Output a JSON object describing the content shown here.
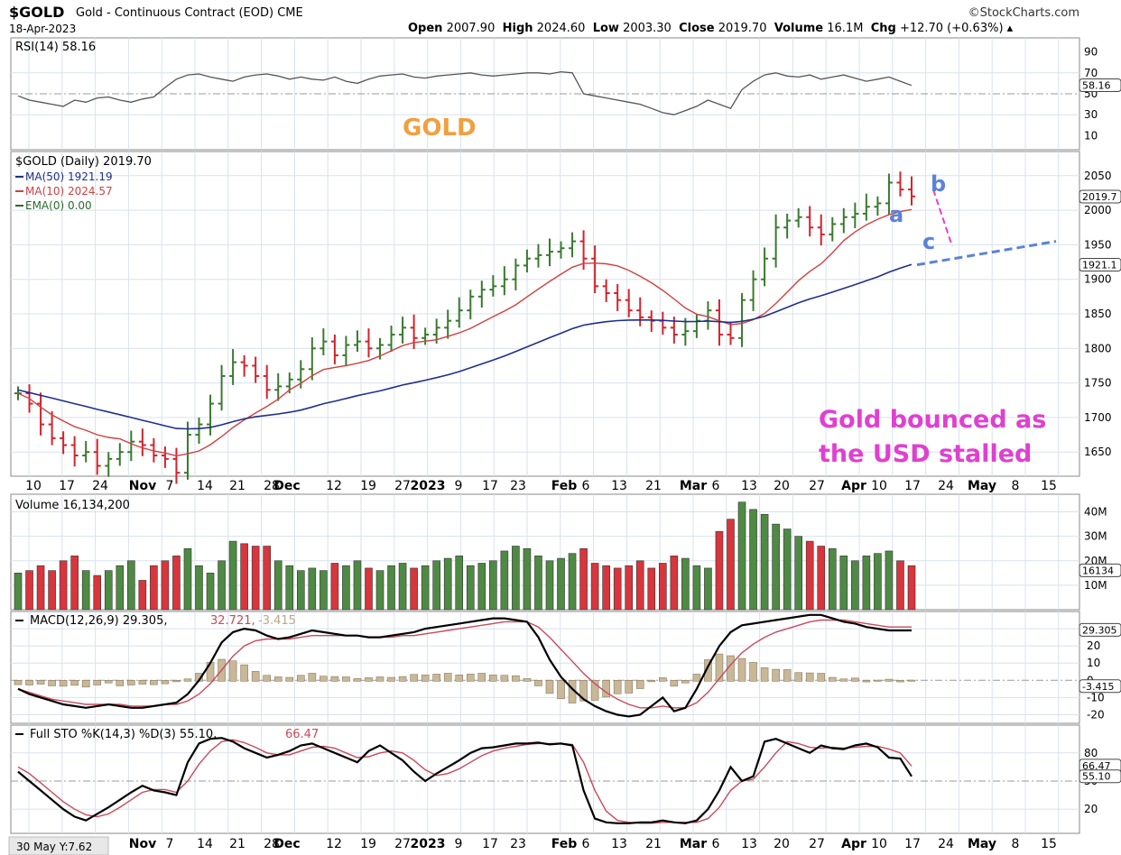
{
  "header": {
    "symbol": "$GOLD",
    "description": "Gold - Continuous Contract (EOD)",
    "exchange": "CME",
    "brand": "©StockCharts.com",
    "date": "18-Apr-2023",
    "open_label": "Open",
    "open": "2007.90",
    "high_label": "High",
    "high": "2024.60",
    "low_label": "Low",
    "low": "2003.30",
    "close_label": "Close",
    "close": "2019.70",
    "volume_label": "Volume",
    "volume": "16.1M",
    "chg_label": "Chg",
    "chg": "+12.70 (+0.63%)"
  },
  "colors": {
    "up": "#3a7a2e",
    "down": "#d4232b",
    "ma50": "#1f2e8f",
    "ma10": "#d04040",
    "rsi": "#555555",
    "annot_blue": "#5c82d8",
    "annot_pink": "#e040d0",
    "annot_orange": "#f0a040",
    "grid": "#d8e2ec"
  },
  "annotations": {
    "gold_label": "GOLD",
    "wave_a": "a",
    "wave_b": "b",
    "wave_c": "c",
    "note_line1": "Gold bounced as",
    "note_line2": "the USD stalled"
  },
  "x_axis_labels": [
    "10",
    "17",
    "24",
    "Nov",
    "7",
    "14",
    "21",
    "28",
    "Dec",
    "12",
    "19",
    "27",
    "2023",
    "9",
    "17",
    "23",
    "Feb",
    "6",
    "13",
    "21",
    "Mar",
    "6",
    "13",
    "20",
    "27",
    "Apr",
    "10",
    "17",
    "24",
    "May",
    "8",
    "15"
  ],
  "bottom_left_note": "30 May Y:7.62",
  "chart_data": [
    {
      "type": "line",
      "name": "RSI panel",
      "legend": "RSI(14) 58.16",
      "ticks": [
        90,
        70,
        50,
        30,
        10
      ],
      "ylim": [
        0,
        100
      ],
      "reference_lines": [
        70,
        50,
        30
      ],
      "last_value_tag": "58.16",
      "values": [
        48,
        44,
        42,
        40,
        38,
        44,
        42,
        46,
        47,
        44,
        42,
        45,
        47,
        56,
        64,
        68,
        69,
        66,
        64,
        62,
        66,
        68,
        69,
        67,
        64,
        66,
        64,
        63,
        66,
        62,
        60,
        64,
        67,
        68,
        69,
        66,
        65,
        67,
        68,
        69,
        70,
        68,
        67,
        68,
        69,
        70,
        70,
        69,
        71,
        70,
        50,
        48,
        46,
        44,
        42,
        40,
        36,
        32,
        30,
        34,
        38,
        44,
        40,
        36,
        54,
        62,
        68,
        70,
        67,
        66,
        68,
        64,
        66,
        68,
        65,
        62,
        64,
        66,
        62,
        58
      ]
    },
    {
      "type": "ohlc",
      "name": "Price panel",
      "legend": {
        "main": "$GOLD (Daily) 2019.70",
        "ma50": "MA(50) 1921.19",
        "ma10": "MA(10) 2024.57",
        "ema": "EMA(0) 0.00"
      },
      "ticks": [
        2050,
        2000,
        1950,
        1900,
        1850,
        1800,
        1750,
        1700,
        1650
      ],
      "ylim": [
        1615,
        2085
      ],
      "last_close_tag": "2019.7",
      "ma50_tag": "1921.1",
      "closes": [
        1735,
        1720,
        1690,
        1670,
        1660,
        1645,
        1650,
        1630,
        1640,
        1650,
        1665,
        1660,
        1645,
        1640,
        1620,
        1675,
        1690,
        1720,
        1760,
        1780,
        1775,
        1760,
        1740,
        1745,
        1755,
        1770,
        1800,
        1810,
        1790,
        1805,
        1810,
        1800,
        1805,
        1820,
        1830,
        1815,
        1820,
        1830,
        1840,
        1855,
        1875,
        1885,
        1890,
        1900,
        1920,
        1930,
        1935,
        1940,
        1945,
        1955,
        1930,
        1890,
        1880,
        1870,
        1855,
        1845,
        1840,
        1830,
        1820,
        1825,
        1840,
        1855,
        1820,
        1815,
        1870,
        1900,
        1930,
        1975,
        1985,
        1990,
        1975,
        1965,
        1980,
        1990,
        1995,
        2005,
        2010,
        2040,
        2030,
        2020
      ]
    },
    {
      "type": "bar",
      "name": "Volume panel",
      "legend": "Volume 16,134,200",
      "ticks": [
        "40M",
        "30M",
        "20M",
        "10M"
      ],
      "ylim": [
        0,
        45
      ],
      "last_value_tag": "16134",
      "values": [
        15,
        16,
        18,
        16,
        20,
        22,
        16,
        14,
        16,
        18,
        20,
        12,
        18,
        20,
        22,
        25,
        18,
        15,
        20,
        28,
        27,
        26,
        26,
        20,
        18,
        16,
        17,
        16,
        19,
        18,
        20,
        17,
        16,
        18,
        19,
        17,
        18,
        20,
        21,
        22,
        18,
        19,
        20,
        24,
        26,
        25,
        22,
        20,
        21,
        23,
        25,
        19,
        18,
        17,
        18,
        20,
        17,
        19,
        22,
        21,
        18,
        17,
        32,
        37,
        44,
        41,
        39,
        35,
        33,
        30,
        28,
        26,
        25,
        22,
        20,
        22,
        23,
        24,
        20,
        18
      ]
    },
    {
      "type": "line",
      "name": "MACD panel",
      "legend": {
        "label": "MACD(12,26,9)",
        "macd": "29.305",
        "signal": "32.721",
        "hist": "-3.415"
      },
      "ticks": [
        30,
        20,
        10,
        0,
        -10,
        -20
      ],
      "ylim": [
        -25,
        40
      ],
      "last_value_tags": [
        "29.305",
        "-3.415"
      ],
      "macd": [
        -5,
        -8,
        -10,
        -12,
        -14,
        -15,
        -16,
        -15,
        -14,
        -15,
        -16,
        -16,
        -15,
        -14,
        -13,
        -8,
        0,
        10,
        22,
        28,
        30,
        29,
        26,
        24,
        25,
        27,
        29,
        28,
        27,
        26,
        26,
        25,
        25,
        26,
        27,
        28,
        30,
        31,
        32,
        33,
        34,
        35,
        36,
        36,
        35,
        34,
        25,
        12,
        2,
        -5,
        -11,
        -15,
        -18,
        -20,
        -21,
        -20,
        -15,
        -10,
        -18,
        -16,
        -5,
        8,
        20,
        28,
        32,
        33,
        34,
        35,
        36,
        37,
        38,
        38,
        36,
        34,
        33,
        31,
        30,
        29,
        29,
        29
      ],
      "signal": [
        -5,
        -7,
        -9,
        -11,
        -12,
        -13,
        -14,
        -14,
        -14,
        -14,
        -15,
        -15,
        -15,
        -14,
        -14,
        -12,
        -8,
        -2,
        6,
        14,
        20,
        23,
        24,
        24,
        24,
        25,
        26,
        26,
        26,
        26,
        26,
        25,
        25,
        25,
        26,
        26,
        27,
        28,
        29,
        30,
        31,
        32,
        33,
        34,
        34,
        34,
        31,
        25,
        18,
        11,
        4,
        -2,
        -7,
        -11,
        -14,
        -16,
        -16,
        -15,
        -16,
        -16,
        -13,
        -7,
        1,
        9,
        16,
        21,
        25,
        28,
        30,
        32,
        34,
        35,
        35,
        35,
        34,
        33,
        32,
        31,
        31,
        31
      ]
    },
    {
      "type": "line",
      "name": "Full Stochastic panel",
      "legend": {
        "label": "Full STO %K(14,3) %D(3)",
        "k": "55.10",
        "d": "66.47"
      },
      "ticks": [
        80,
        50,
        20
      ],
      "ylim": [
        0,
        100
      ],
      "reference_lines": [
        80,
        50,
        20
      ],
      "last_value_tags": [
        "66.47",
        "55.10"
      ],
      "k": [
        60,
        50,
        40,
        30,
        20,
        12,
        8,
        15,
        22,
        30,
        38,
        45,
        40,
        38,
        35,
        70,
        90,
        95,
        96,
        92,
        85,
        80,
        75,
        78,
        82,
        88,
        90,
        85,
        80,
        75,
        70,
        82,
        88,
        80,
        72,
        60,
        50,
        58,
        65,
        72,
        80,
        85,
        86,
        88,
        90,
        90,
        91,
        89,
        90,
        88,
        40,
        10,
        6,
        5,
        5,
        6,
        6,
        8,
        6,
        5,
        8,
        20,
        40,
        65,
        50,
        55,
        92,
        95,
        90,
        85,
        80,
        88,
        85,
        84,
        88,
        90,
        86,
        75,
        74,
        55
      ],
      "d": [
        65,
        58,
        48,
        38,
        28,
        20,
        14,
        12,
        15,
        22,
        30,
        38,
        41,
        41,
        38,
        50,
        68,
        82,
        92,
        94,
        91,
        86,
        80,
        78,
        78,
        82,
        86,
        87,
        85,
        80,
        75,
        76,
        80,
        82,
        80,
        72,
        62,
        56,
        58,
        63,
        70,
        77,
        82,
        85,
        87,
        89,
        90,
        90,
        90,
        89,
        70,
        40,
        18,
        8,
        6,
        5,
        5,
        6,
        6,
        6,
        6,
        10,
        22,
        40,
        50,
        52,
        65,
        80,
        92,
        90,
        86,
        85,
        86,
        85,
        86,
        87,
        87,
        84,
        80,
        66
      ]
    }
  ]
}
